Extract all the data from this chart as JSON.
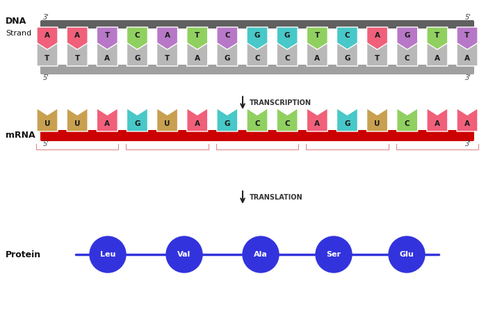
{
  "bg_color": "#ffffff",
  "dna_top_letters": [
    "A",
    "A",
    "T",
    "C",
    "A",
    "T",
    "C",
    "G",
    "G",
    "T",
    "C",
    "A",
    "G",
    "T",
    "T"
  ],
  "dna_top_colors": [
    "#f0607a",
    "#f0607a",
    "#b878c8",
    "#90d060",
    "#b878c8",
    "#90d060",
    "#b878c8",
    "#48c8c8",
    "#48c8c8",
    "#90d060",
    "#48c8c8",
    "#f0607a",
    "#b878c8",
    "#90d060",
    "#b878c8"
  ],
  "dna_bot_letters": [
    "T",
    "T",
    "A",
    "G",
    "T",
    "A",
    "G",
    "C",
    "C",
    "A",
    "G",
    "T",
    "C",
    "A",
    "A"
  ],
  "dna_bot_color": "#b8b8b8",
  "mrna_letters": [
    "U",
    "U",
    "A",
    "G",
    "U",
    "A",
    "G",
    "C",
    "C",
    "A",
    "G",
    "U",
    "C",
    "A",
    "A"
  ],
  "mrna_colors": [
    "#c8a050",
    "#c8a050",
    "#f0607a",
    "#48c8c8",
    "#c8a050",
    "#f0607a",
    "#48c8c8",
    "#90d060",
    "#90d060",
    "#f0607a",
    "#48c8c8",
    "#c8a050",
    "#90d060",
    "#f0607a",
    "#f0607a"
  ],
  "protein_labels": [
    "Leu",
    "Val",
    "Ala",
    "Ser",
    "Glu"
  ],
  "protein_color": "#3333dd",
  "dna_top_bar_color": "#606060",
  "dna_bot_bar_color": "#a0a0a0",
  "mrna_bar_color": "#cc0000",
  "transcription_label": "TRANSCRIPTION",
  "translation_label": "TRANSLATION",
  "dna_label_bold": "DNA",
  "dna_label_normal": "Strand",
  "mrna_label": "mRNA",
  "protein_label": "Protein",
  "prime3": "3'",
  "prime5": "5'"
}
